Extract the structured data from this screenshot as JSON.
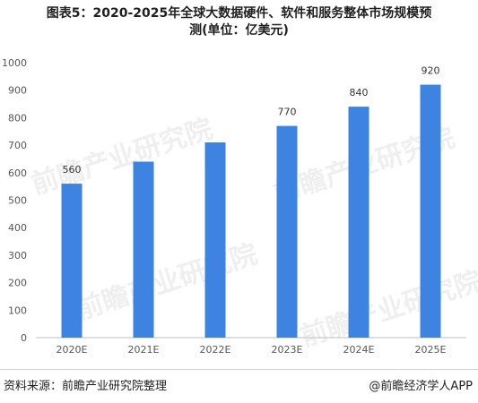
{
  "title_line1": "图表5：2020-2025年全球大数据硬件、软件和服务整体市场规模预",
  "title_line2": "测(单位：亿美元)",
  "source": "资料来源：前瞻产业研究院整理",
  "credit": "@前瞻经济学人APP",
  "watermark": "前瞻产业研究院",
  "colors": {
    "bar": "#3c84e0",
    "axis": "#bdbdbd"
  },
  "chart_data": {
    "type": "bar",
    "title": "图表5：2020-2025年全球大数据硬件、软件和服务整体市场规模预测(单位：亿美元)",
    "xlabel": "",
    "ylabel": "",
    "categories": [
      "2020E",
      "2021E",
      "2022E",
      "2023E",
      "2024E",
      "2025E"
    ],
    "values": [
      560,
      640,
      710,
      770,
      840,
      920
    ],
    "data_labels": [
      "560",
      "",
      "",
      "770",
      "840",
      "920"
    ],
    "ylim": [
      0,
      1000
    ],
    "yticks": [
      0,
      100,
      200,
      300,
      400,
      500,
      600,
      700,
      800,
      900,
      1000
    ],
    "grid": false,
    "legend": "none"
  }
}
